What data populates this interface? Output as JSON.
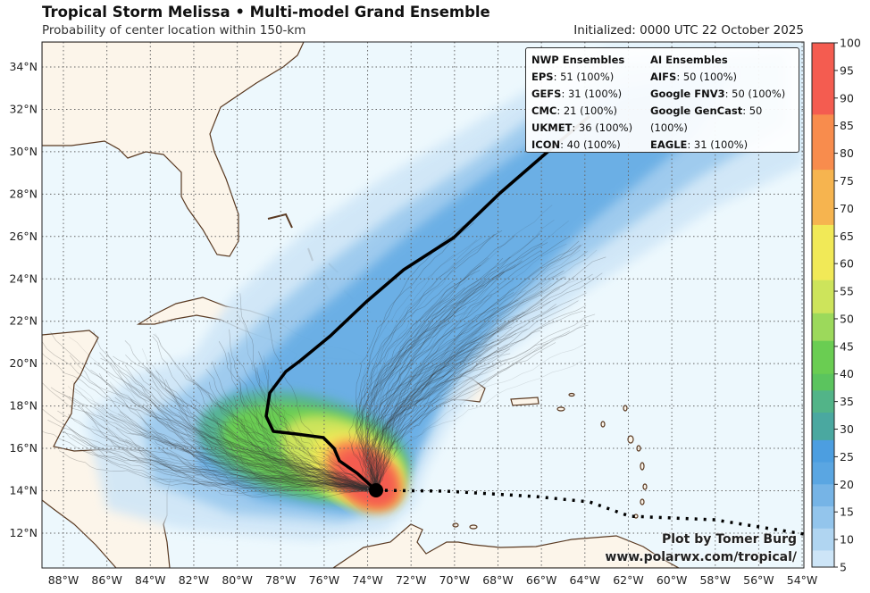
{
  "header": {
    "title": "Tropical Storm Melissa • Multi-model Grand Ensemble",
    "subtitle": "Probability of center location within 150-km",
    "initialized": "Initialized: 0000 UTC 22 October 2025"
  },
  "legend": {
    "nwp_heading": "NWP Ensembles",
    "ai_heading": "AI Ensembles",
    "nwp": [
      {
        "model": "EPS",
        "value": ": 51 (100%)"
      },
      {
        "model": "GEFS",
        "value": ": 31 (100%)"
      },
      {
        "model": "CMC",
        "value": ": 21 (100%)"
      },
      {
        "model": "UKMET",
        "value": ": 36 (100%)"
      },
      {
        "model": "ICON",
        "value": ": 40 (100%)"
      }
    ],
    "ai": [
      {
        "model": "AIFS",
        "value": ": 50 (100%)"
      },
      {
        "model": "Google FNV3",
        "value": ": 50 (100%)"
      },
      {
        "model": "Google GenCast",
        "value": ": 50 (100%)"
      },
      {
        "model": "EAGLE",
        "value": ": 31 (100%)"
      }
    ]
  },
  "map": {
    "lon_labels": [
      "88°W",
      "86°W",
      "84°W",
      "82°W",
      "80°W",
      "78°W",
      "76°W",
      "74°W",
      "72°W",
      "70°W",
      "68°W",
      "66°W",
      "64°W",
      "62°W",
      "60°W",
      "58°W",
      "56°W",
      "54°W"
    ],
    "lat_labels": [
      "34°N",
      "32°N",
      "30°N",
      "28°N",
      "26°N",
      "24°N",
      "22°N",
      "20°N",
      "18°N",
      "16°N",
      "14°N",
      "12°N"
    ],
    "storm_position": {
      "lat": 14.0,
      "lon": -73.5
    },
    "colors": {
      "ocean": "#edf8fd",
      "land": "#fcf5ea",
      "coast": "#5a3a22",
      "track": "#000000"
    }
  },
  "colorbar": {
    "ticks": [
      "100",
      "95",
      "90",
      "85",
      "80",
      "75",
      "70",
      "65",
      "60",
      "55",
      "50",
      "45",
      "40",
      "35",
      "30",
      "25",
      "20",
      "15",
      "10",
      "5"
    ],
    "segments": [
      {
        "from": 87,
        "to": 100,
        "color": "#f45c50"
      },
      {
        "from": 77,
        "to": 87,
        "color": "#f88c4d"
      },
      {
        "from": 67,
        "to": 77,
        "color": "#f6b44f"
      },
      {
        "from": 57,
        "to": 67,
        "color": "#f1e957"
      },
      {
        "from": 51,
        "to": 57,
        "color": "#cde45b"
      },
      {
        "from": 46,
        "to": 51,
        "color": "#9cd95b"
      },
      {
        "from": 40,
        "to": 46,
        "color": "#6acd52"
      },
      {
        "from": 37,
        "to": 40,
        "color": "#5bc45e"
      },
      {
        "from": 33,
        "to": 37,
        "color": "#52b488"
      },
      {
        "from": 28,
        "to": 33,
        "color": "#4aa8a0"
      },
      {
        "from": 24,
        "to": 28,
        "color": "#4c9ee0"
      },
      {
        "from": 20,
        "to": 24,
        "color": "#5aa6e2"
      },
      {
        "from": 16,
        "to": 20,
        "color": "#76b4e6"
      },
      {
        "from": 12,
        "to": 16,
        "color": "#93c5ec"
      },
      {
        "from": 8,
        "to": 12,
        "color": "#b0d5f1"
      },
      {
        "from": 5,
        "to": 8,
        "color": "#cde5f7"
      }
    ]
  },
  "credit": {
    "line1": "Plot by Tomer Burg",
    "line2": "www.polarwx.com/tropical/"
  }
}
